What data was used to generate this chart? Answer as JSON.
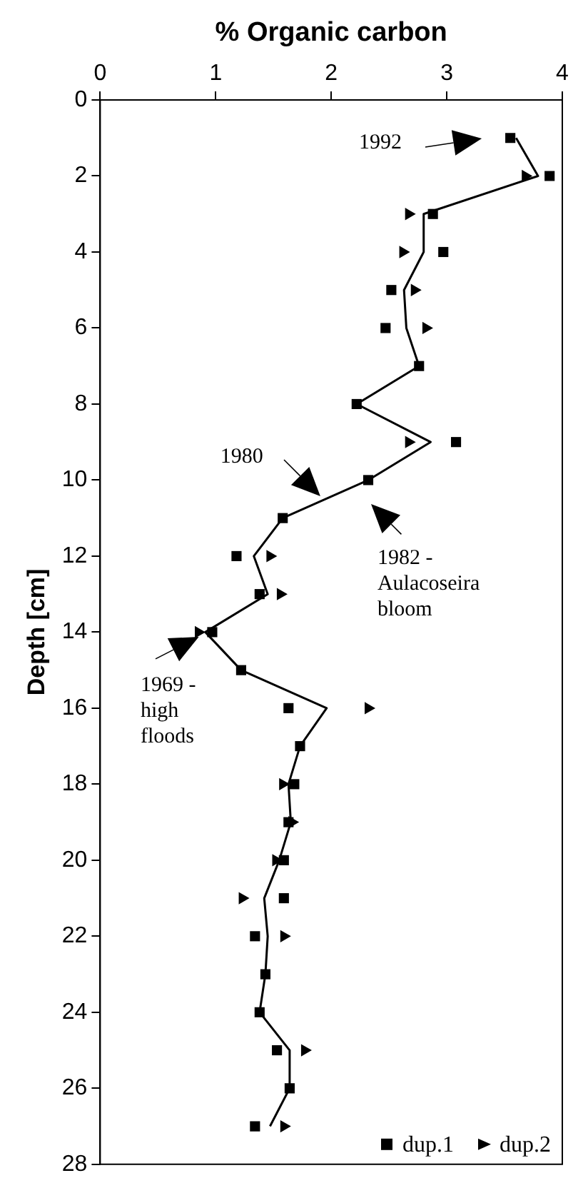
{
  "chart_data": {
    "type": "scatter",
    "title": "% Organic carbon",
    "ylabel": "Depth [cm]",
    "orientation": "horizontal",
    "x": [
      1,
      2,
      3,
      4,
      5,
      6,
      7,
      8,
      9,
      10,
      11,
      12,
      13,
      14,
      15,
      16,
      17,
      18,
      19,
      20,
      21,
      22,
      23,
      24,
      25,
      26,
      27
    ],
    "series": [
      {
        "type": "line",
        "color": "#000000",
        "marker": "none",
        "values": [
          3.6,
          3.79,
          2.8,
          2.8,
          2.63,
          2.65,
          2.76,
          2.22,
          2.86,
          2.32,
          1.58,
          1.33,
          1.45,
          0.91,
          1.22,
          1.96,
          1.73,
          1.63,
          1.65,
          1.55,
          1.42,
          1.45,
          1.43,
          1.38,
          1.64,
          1.64,
          1.47
        ]
      },
      {
        "name": "dup.1",
        "type": "scatter",
        "color": "#000000",
        "marker": "square",
        "values": [
          3.55,
          3.89,
          2.88,
          2.97,
          2.52,
          2.47,
          2.76,
          2.22,
          3.08,
          2.32,
          1.58,
          1.18,
          1.38,
          0.97,
          1.22,
          1.63,
          1.73,
          1.68,
          1.63,
          1.59,
          1.59,
          1.34,
          1.43,
          1.38,
          1.53,
          1.64,
          1.34
        ]
      },
      {
        "name": "dup.2",
        "type": "scatter",
        "color": "#000000",
        "marker": "triangle",
        "values": [
          null,
          3.68,
          2.67,
          2.62,
          2.72,
          2.82,
          null,
          null,
          2.67,
          null,
          null,
          1.47,
          1.56,
          0.85,
          null,
          2.32,
          null,
          1.58,
          1.66,
          1.52,
          1.23,
          1.59,
          null,
          null,
          1.77,
          null,
          1.59
        ]
      }
    ],
    "xlim": [
      0,
      4
    ],
    "xticks": [
      0,
      1,
      2,
      3,
      4
    ],
    "ylim": [
      28,
      0
    ],
    "yticks": [
      0,
      2,
      4,
      6,
      8,
      10,
      12,
      14,
      16,
      18,
      20,
      22,
      24,
      26,
      28
    ],
    "grid": false,
    "legend": "bottom right",
    "annotations": [
      "1992",
      "1980",
      "1982 - Aulacoseira bloom",
      "1969 - high floods"
    ]
  }
}
